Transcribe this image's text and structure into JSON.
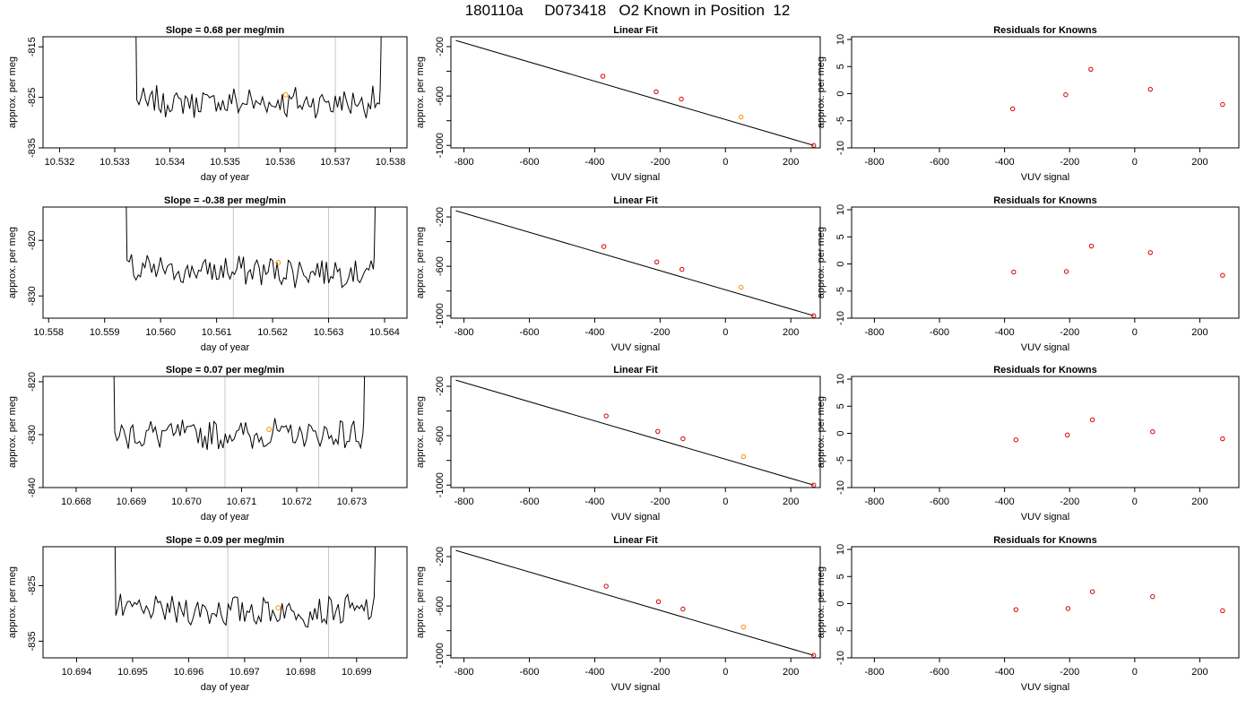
{
  "page": {
    "title": "180110a     D073418   O2 Known in Position  12"
  },
  "colors": {
    "trace": "#000000",
    "guide_lines": "#c8c8c8",
    "marker": "#ff8c00",
    "residual_points": "#d40000",
    "frame": "#000000"
  },
  "chart_data": [
    {
      "type": "line",
      "row": 0,
      "panel": "trace",
      "title": "Slope =  0.68  per meg/min",
      "xlabel": "day of year",
      "ylabel": "approx. per meg",
      "xlim": [
        10.5317,
        10.5383
      ],
      "ylim": [
        -835,
        -813
      ],
      "xticks": [
        10.532,
        10.533,
        10.534,
        10.535,
        10.536,
        10.537,
        10.538
      ],
      "xtick_labels": [
        "10.532",
        "10.533",
        "10.534",
        "10.535",
        "10.536",
        "10.537",
        "10.538"
      ],
      "yticks": [
        -815,
        -825,
        -835
      ],
      "ytick_labels": [
        "-815",
        "-825",
        "-835"
      ],
      "plateau_x": [
        10.5334,
        10.5378
      ],
      "level": -826,
      "vlines": [
        10.53525,
        10.537
      ],
      "marker": {
        "x": 10.5361,
        "y": -824.5
      }
    },
    {
      "type": "line",
      "row": 1,
      "panel": "trace",
      "title": "Slope =  -0.38  per meg/min",
      "xlabel": "day of year",
      "ylabel": "approx. per meg",
      "xlim": [
        10.5579,
        10.5644
      ],
      "ylim": [
        -834,
        -814
      ],
      "xticks": [
        10.558,
        10.559,
        10.56,
        10.561,
        10.562,
        10.563,
        10.564
      ],
      "xtick_labels": [
        "10.558",
        "10.559",
        "10.560",
        "10.561",
        "10.562",
        "10.563",
        "10.564"
      ],
      "yticks": [
        -820,
        -830
      ],
      "ytick_labels": [
        "-820",
        "-830"
      ],
      "plateau_x": [
        10.5594,
        10.5638
      ],
      "level": -825.5,
      "vlines": [
        10.5613,
        10.563
      ],
      "marker": {
        "x": 10.5621,
        "y": -824
      }
    },
    {
      "type": "line",
      "row": 2,
      "panel": "trace",
      "title": "Slope =  0.07  per meg/min",
      "xlabel": "day of year",
      "ylabel": "approx. per meg",
      "xlim": [
        10.6674,
        10.674
      ],
      "ylim": [
        -840,
        -819
      ],
      "xticks": [
        10.668,
        10.669,
        10.67,
        10.671,
        10.672,
        10.673
      ],
      "xtick_labels": [
        "10.668",
        "10.669",
        "10.670",
        "10.671",
        "10.672",
        "10.673"
      ],
      "yticks": [
        -820,
        -830,
        -840
      ],
      "ytick_labels": [
        "-820",
        "-830",
        "-840"
      ],
      "plateau_x": [
        10.6687,
        10.6732
      ],
      "level": -830,
      "vlines": [
        10.6707,
        10.6724
      ],
      "marker": {
        "x": 10.6715,
        "y": -829
      }
    },
    {
      "type": "line",
      "row": 3,
      "panel": "trace",
      "title": "Slope =  0.09  per meg/min",
      "xlabel": "day of year",
      "ylabel": "approx. per meg",
      "xlim": [
        10.6934,
        10.6999
      ],
      "ylim": [
        -838,
        -818
      ],
      "xticks": [
        10.694,
        10.695,
        10.696,
        10.697,
        10.698,
        10.699
      ],
      "xtick_labels": [
        "10.694",
        "10.695",
        "10.696",
        "10.697",
        "10.698",
        "10.699"
      ],
      "yticks": [
        -825,
        -835
      ],
      "ytick_labels": [
        "-825",
        "-835"
      ],
      "plateau_x": [
        10.6947,
        10.6993
      ],
      "level": -829.5,
      "vlines": [
        10.6967,
        10.6985
      ],
      "marker": {
        "x": 10.6976,
        "y": -829
      }
    },
    {
      "type": "scatter",
      "row": 0,
      "panel": "fit",
      "title": "Linear Fit",
      "xlabel": "VUV signal",
      "ylabel": "approx. per meg",
      "xlim": [
        -840,
        290
      ],
      "ylim": [
        -1020,
        -120
      ],
      "xticks": [
        -800,
        -600,
        -400,
        -200,
        0,
        200
      ],
      "xtick_labels": [
        "-800",
        "-600",
        "-400",
        "-200",
        "0",
        "200"
      ],
      "yticks": [
        -200,
        -400,
        -600,
        -800,
        -1000
      ],
      "ytick_labels": [
        "-200",
        "",
        "-600",
        "",
        "-1000"
      ],
      "line": {
        "x1": -825,
        "y1": -150,
        "x2": 270,
        "y2": -1000
      },
      "x": [
        -375,
        -212,
        -135,
        48,
        270
      ],
      "y": [
        -440,
        -565,
        -625,
        -770,
        -1000
      ],
      "highlight_x": 48
    },
    {
      "type": "scatter",
      "row": 1,
      "panel": "fit",
      "title": "Linear Fit",
      "xlabel": "VUV signal",
      "ylabel": "approx. per meg",
      "xlim": [
        -840,
        290
      ],
      "ylim": [
        -1020,
        -120
      ],
      "xticks": [
        -800,
        -600,
        -400,
        -200,
        0,
        200
      ],
      "xtick_labels": [
        "-800",
        "-600",
        "-400",
        "-200",
        "0",
        "200"
      ],
      "yticks": [
        -200,
        -400,
        -600,
        -800,
        -1000
      ],
      "ytick_labels": [
        "-200",
        "",
        "-600",
        "",
        "-1000"
      ],
      "line": {
        "x1": -825,
        "y1": -150,
        "x2": 270,
        "y2": -1000
      },
      "x": [
        -372,
        -210,
        -133,
        48,
        270
      ],
      "y": [
        -440,
        -565,
        -625,
        -770,
        -1000
      ],
      "highlight_x": 48
    },
    {
      "type": "scatter",
      "row": 2,
      "panel": "fit",
      "title": "Linear Fit",
      "xlabel": "VUV signal",
      "ylabel": "approx. per meg",
      "xlim": [
        -840,
        290
      ],
      "ylim": [
        -1020,
        -120
      ],
      "xticks": [
        -800,
        -600,
        -400,
        -200,
        0,
        200
      ],
      "xtick_labels": [
        "-800",
        "-600",
        "-400",
        "-200",
        "0",
        "200"
      ],
      "yticks": [
        -200,
        -400,
        -600,
        -800,
        -1000
      ],
      "ytick_labels": [
        "-200",
        "",
        "-600",
        "",
        "-1000"
      ],
      "line": {
        "x1": -825,
        "y1": -150,
        "x2": 270,
        "y2": -1000
      },
      "x": [
        -365,
        -207,
        -130,
        55,
        270
      ],
      "y": [
        -440,
        -565,
        -625,
        -770,
        -1000
      ],
      "highlight_x": 55
    },
    {
      "type": "scatter",
      "row": 3,
      "panel": "fit",
      "title": "Linear Fit",
      "xlabel": "VUV signal",
      "ylabel": "approx. per meg",
      "xlim": [
        -840,
        290
      ],
      "ylim": [
        -1020,
        -120
      ],
      "xticks": [
        -800,
        -600,
        -400,
        -200,
        0,
        200
      ],
      "xtick_labels": [
        "-800",
        "-600",
        "-400",
        "-200",
        "0",
        "200"
      ],
      "yticks": [
        -200,
        -400,
        -600,
        -800,
        -1000
      ],
      "ytick_labels": [
        "-200",
        "",
        "-600",
        "",
        "-1000"
      ],
      "line": {
        "x1": -825,
        "y1": -150,
        "x2": 270,
        "y2": -1000
      },
      "x": [
        -365,
        -205,
        -130,
        55,
        270
      ],
      "y": [
        -440,
        -565,
        -625,
        -770,
        -1000
      ],
      "highlight_x": 55
    },
    {
      "type": "scatter",
      "row": 0,
      "panel": "resid",
      "title": "Residuals for Knowns",
      "xlabel": "VUV signal",
      "ylabel": "approx. per meg",
      "xlim": [
        -870,
        320
      ],
      "ylim": [
        -10,
        10.5
      ],
      "xticks": [
        -800,
        -600,
        -400,
        -200,
        0,
        200
      ],
      "xtick_labels": [
        "-800",
        "-600",
        "-400",
        "-200",
        "0",
        "200"
      ],
      "yticks": [
        10,
        5,
        0,
        -5,
        -10
      ],
      "ytick_labels": [
        "10",
        "5",
        "0",
        "-5",
        "-10"
      ],
      "x": [
        -375,
        -212,
        -135,
        48,
        270
      ],
      "y": [
        -2.8,
        -0.2,
        4.5,
        0.8,
        -2.0
      ]
    },
    {
      "type": "scatter",
      "row": 1,
      "panel": "resid",
      "title": "Residuals for Knowns",
      "xlabel": "VUV signal",
      "ylabel": "approx. per meg",
      "xlim": [
        -870,
        320
      ],
      "ylim": [
        -10,
        10.5
      ],
      "xticks": [
        -800,
        -600,
        -400,
        -200,
        0,
        200
      ],
      "xtick_labels": [
        "-800",
        "-600",
        "-400",
        "-200",
        "0",
        "200"
      ],
      "yticks": [
        10,
        5,
        0,
        -5,
        -10
      ],
      "ytick_labels": [
        "10",
        "5",
        "0",
        "-5",
        "-10"
      ],
      "x": [
        -372,
        -210,
        -133,
        48,
        270
      ],
      "y": [
        -1.5,
        -1.4,
        3.3,
        2.1,
        -2.1
      ]
    },
    {
      "type": "scatter",
      "row": 2,
      "panel": "resid",
      "title": "Residuals for Knowns",
      "xlabel": "VUV signal",
      "ylabel": "approx. per meg",
      "xlim": [
        -870,
        320
      ],
      "ylim": [
        -10,
        10.5
      ],
      "xticks": [
        -800,
        -600,
        -400,
        -200,
        0,
        200
      ],
      "xtick_labels": [
        "-800",
        "-600",
        "-400",
        "-200",
        "0",
        "200"
      ],
      "yticks": [
        10,
        5,
        0,
        -5,
        -10
      ],
      "ytick_labels": [
        "10",
        "5",
        "0",
        "-5",
        "-10"
      ],
      "x": [
        -365,
        -207,
        -130,
        55,
        270
      ],
      "y": [
        -1.2,
        -0.3,
        2.5,
        0.3,
        -1.0
      ]
    },
    {
      "type": "scatter",
      "row": 3,
      "panel": "resid",
      "title": "Residuals for Knowns",
      "xlabel": "VUV signal",
      "ylabel": "approx. per meg",
      "xlim": [
        -870,
        320
      ],
      "ylim": [
        -10,
        10.5
      ],
      "xticks": [
        -800,
        -600,
        -400,
        -200,
        0,
        200
      ],
      "xtick_labels": [
        "-800",
        "-600",
        "-400",
        "-200",
        "0",
        "200"
      ],
      "yticks": [
        10,
        5,
        0,
        -5,
        -10
      ],
      "ytick_labels": [
        "10",
        "5",
        "0",
        "-5",
        "-10"
      ],
      "x": [
        -365,
        -205,
        -130,
        55,
        270
      ],
      "y": [
        -1.1,
        -0.9,
        2.2,
        1.3,
        -1.3
      ]
    }
  ]
}
